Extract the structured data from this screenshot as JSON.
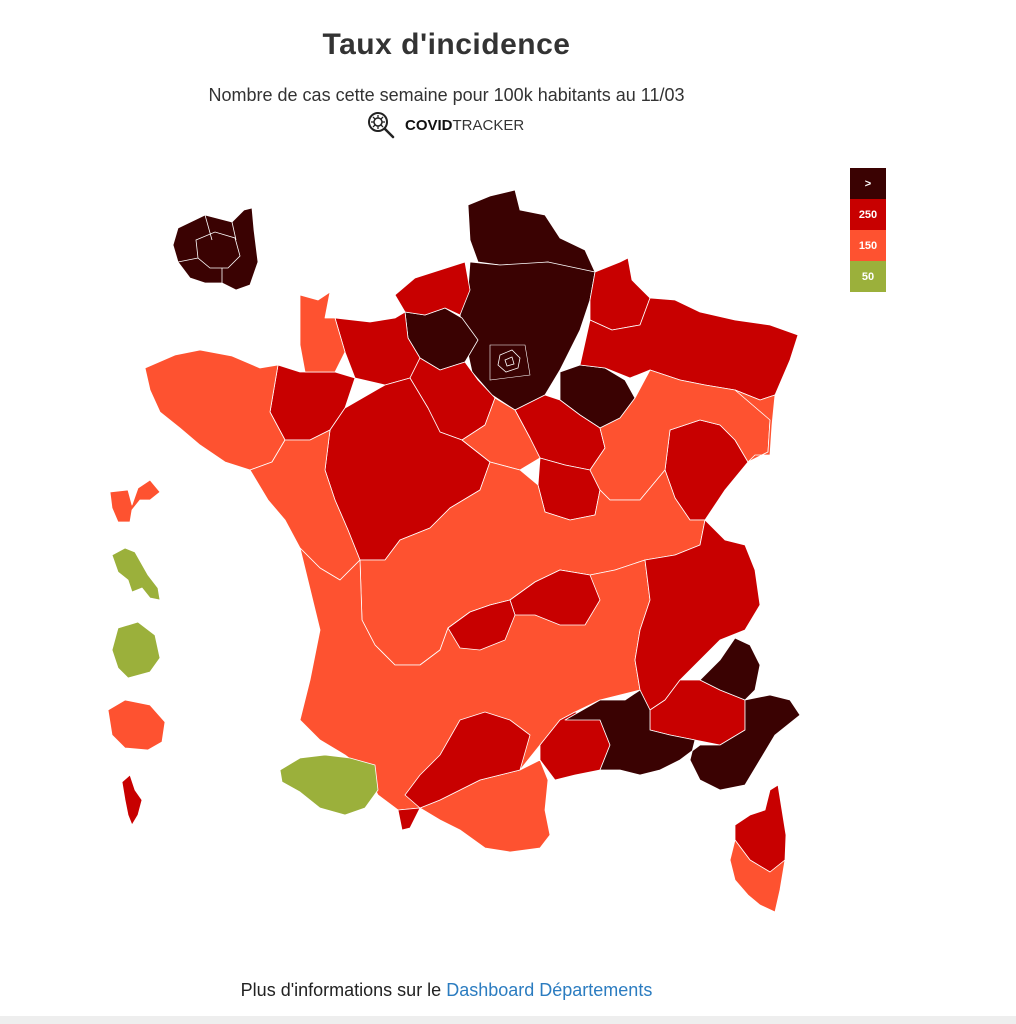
{
  "title": "Taux d'incidence",
  "subtitle": "Nombre de cas cette semaine pour 100k habitants au 11/03",
  "brand": {
    "bold": "COVID",
    "light": "TRACKER"
  },
  "colors": {
    "very_high": "#3a0202",
    "high": "#c80000",
    "medium": "#fe5230",
    "low": "#9bb03b"
  },
  "legend": [
    {
      "label": ">",
      "color": "#3a0202"
    },
    {
      "label": "250",
      "color": "#c80000"
    },
    {
      "label": "150",
      "color": "#fe5230"
    },
    {
      "label": "50",
      "color": "#9bb03b"
    }
  ],
  "footer": {
    "text": "Plus d'informations sur le ",
    "link": "Dashboard Départements"
  }
}
